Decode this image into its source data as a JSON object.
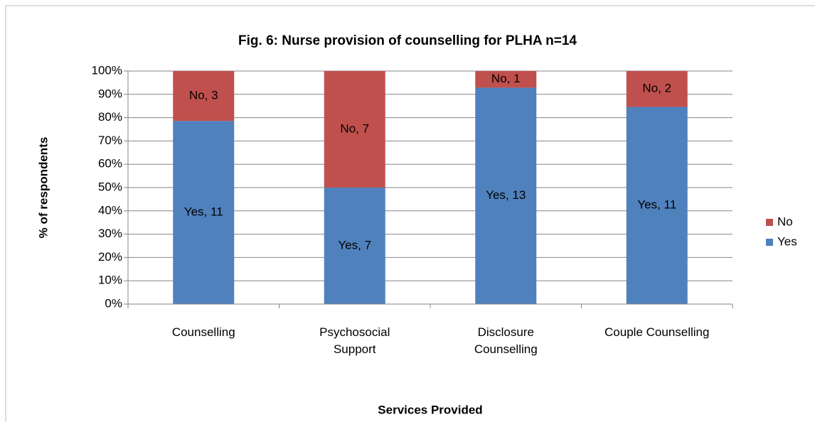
{
  "chart_data": {
    "type": "bar",
    "stacking": "percent",
    "title": "Fig. 6: Nurse provision of counselling for PLHA n=14",
    "x_label": "Services Provided",
    "y_label": "% of respondents",
    "categories": [
      "Counselling",
      "Psychosocial Support",
      "Disclosure Counselling",
      "Couple Counselling"
    ],
    "series": [
      {
        "name": "Yes",
        "color": "#4f81bd",
        "values": [
          11,
          7,
          13,
          11
        ],
        "value_labels": [
          "Yes, 11",
          "Yes, 7",
          "Yes, 13",
          "Yes, 11"
        ]
      },
      {
        "name": "No",
        "color": "#c0504d",
        "values": [
          3,
          7,
          1,
          2
        ],
        "value_labels": [
          "No, 3",
          "No, 7",
          "No, 1",
          "No, 2"
        ]
      }
    ],
    "ylim": [
      0,
      100
    ],
    "yticks": [
      {
        "value": 0,
        "label": "0%"
      },
      {
        "value": 10,
        "label": "10%"
      },
      {
        "value": 20,
        "label": "20%"
      },
      {
        "value": 30,
        "label": "30%"
      },
      {
        "value": 40,
        "label": "40%"
      },
      {
        "value": 50,
        "label": "50%"
      },
      {
        "value": 60,
        "label": "60%"
      },
      {
        "value": 70,
        "label": "70%"
      },
      {
        "value": 80,
        "label": "80%"
      },
      {
        "value": 90,
        "label": "90%"
      },
      {
        "value": 100,
        "label": "100%"
      }
    ],
    "grid": true,
    "legend": "right"
  }
}
